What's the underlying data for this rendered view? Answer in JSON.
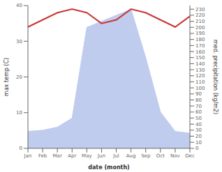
{
  "chart_data": {
    "type": "line",
    "xlabel": "date (month)",
    "ylabel": "max temp (C)",
    "y2label": "med. precipitation (kg/m2)",
    "categories": [
      "Jan",
      "Feb",
      "Mar",
      "Apr",
      "May",
      "Jun",
      "Jul",
      "Aug",
      "Sep",
      "Oct",
      "Nov",
      "Dec"
    ],
    "series": [
      {
        "type": "area",
        "axis": "y2",
        "color": "#c0ccee",
        "values": [
          28,
          30,
          35,
          50,
          200,
          210,
          220,
          230,
          150,
          60,
          28,
          25
        ]
      },
      {
        "type": "line",
        "color": "#cc3333",
        "values": [
          34,
          36,
          38,
          39,
          38,
          35,
          36,
          39,
          38,
          36,
          34,
          37
        ]
      }
    ],
    "ylim": [
      0,
      40
    ],
    "yticks": [
      0,
      10,
      20,
      30,
      40
    ],
    "y2lim": [
      0,
      236
    ],
    "y2ticks": [
      0,
      10,
      20,
      30,
      40,
      50,
      60,
      70,
      80,
      90,
      100,
      110,
      120,
      130,
      140,
      150,
      160,
      170,
      180,
      190,
      200,
      210,
      220,
      230
    ],
    "grid": false
  }
}
